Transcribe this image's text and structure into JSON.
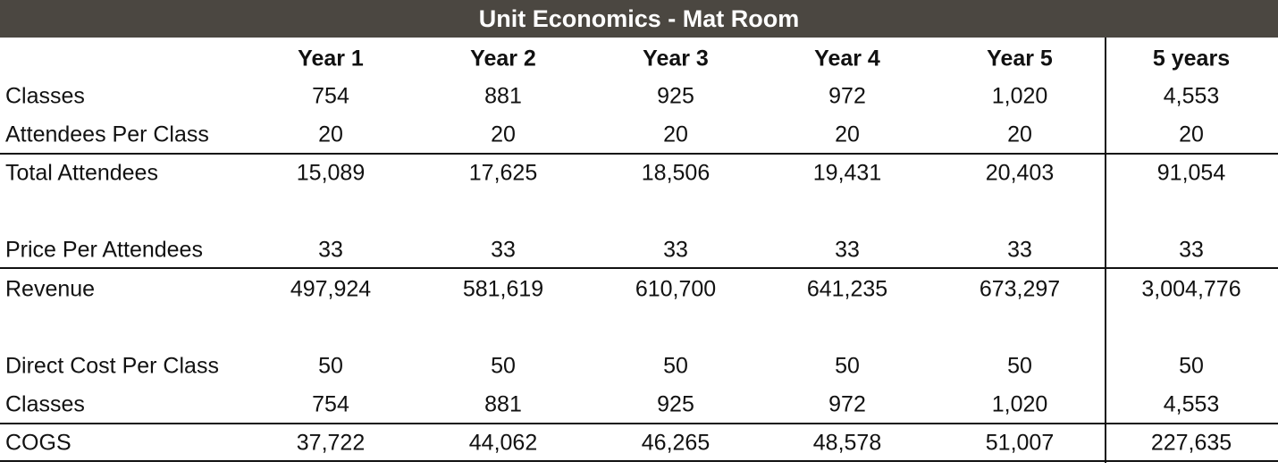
{
  "title": "Unit Economics - Mat Room",
  "table": {
    "columns": [
      "Year 1",
      "Year 2",
      "Year 3",
      "Year 4",
      "Year 5",
      "5 years"
    ],
    "rows": [
      {
        "label": "Classes",
        "values": [
          "754",
          "881",
          "925",
          "972",
          "1,020",
          "4,553"
        ]
      },
      {
        "label": "Attendees Per Class",
        "values": [
          "20",
          "20",
          "20",
          "20",
          "20",
          "20"
        ]
      },
      {
        "label": "Total Attendees",
        "values": [
          "15,089",
          "17,625",
          "18,506",
          "19,431",
          "20,403",
          "91,054"
        ]
      },
      {
        "label": "Price Per Attendees",
        "values": [
          "33",
          "33",
          "33",
          "33",
          "33",
          "33"
        ]
      },
      {
        "label": "Revenue",
        "values": [
          "497,924",
          "581,619",
          "610,700",
          "641,235",
          "673,297",
          "3,004,776"
        ]
      },
      {
        "label": "Direct Cost Per Class",
        "values": [
          "50",
          "50",
          "50",
          "50",
          "50",
          "50"
        ]
      },
      {
        "label": "Classes",
        "values": [
          "754",
          "881",
          "925",
          "972",
          "1,020",
          "4,553"
        ]
      },
      {
        "label": "COGS",
        "values": [
          "37,722",
          "44,062",
          "46,265",
          "48,578",
          "51,007",
          "227,635"
        ]
      }
    ]
  }
}
